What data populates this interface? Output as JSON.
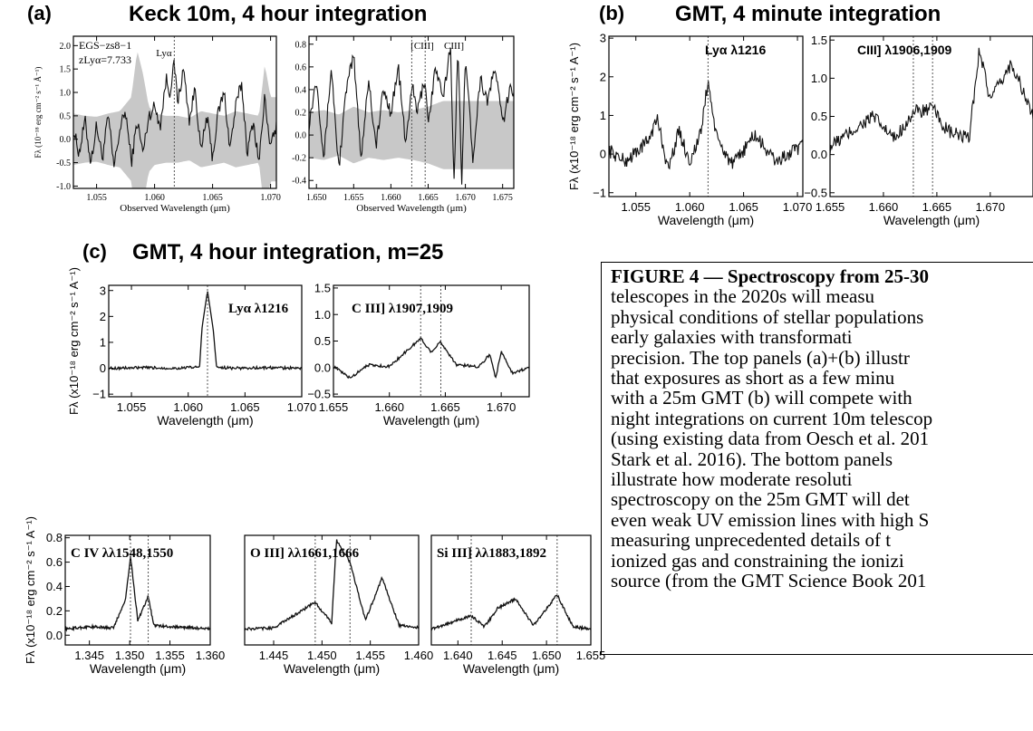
{
  "panel_headers": [
    {
      "label": "(a)",
      "title": "Keck 10m, 4 hour integration"
    },
    {
      "label": "(b)",
      "title": "GMT, 4 minute integration"
    },
    {
      "label": "(c)",
      "title": "GMT, 4 hour integration, m=25"
    }
  ],
  "caption": {
    "lines": [
      "FIGURE 4 — Spectroscopy from 25-30",
      "telescopes in the 2020s will measu",
      "physical conditions of stellar populations",
      "early galaxies with transformati",
      "precision. The top panels (a)+(b) illustr",
      "that exposures as short as a few minu",
      "with a 25m GMT (b) will compete with",
      "night integrations on current 10m telescop",
      "(using existing data from Oesch et al. 201",
      "Stark et al. 2016). The bottom panels",
      "illustrate how moderate resoluti",
      "spectroscopy on the 25m GMT will det",
      "even weak UV emission lines with high S",
      "measuring unprecedented details of t",
      "ionized gas and constraining the ionizi",
      "source (from the GMT Science Book 201"
    ]
  },
  "chart_data": [
    {
      "id": "a1",
      "type": "line",
      "panel": "(a)",
      "xlim": [
        1.053,
        1.0705
      ],
      "ylim": [
        -1.05,
        2.2
      ],
      "xticks": [
        "1.055",
        "1.060",
        "1.065",
        "1.070"
      ],
      "xtick_values": [
        1.055,
        1.06,
        1.065,
        1.07
      ],
      "yticks": [
        "-1.0",
        "-0.5",
        "0.0",
        "0.5",
        "1.0",
        "1.5",
        "2.0"
      ],
      "ytick_values": [
        -1,
        -0.5,
        0,
        0.5,
        1,
        1.5,
        2
      ],
      "xlabel": "Observed Wavelength (μm)",
      "ylabel": "Fλ (10⁻¹⁸ erg cm⁻² s⁻¹ Å⁻¹)",
      "annotations": [
        "EGS−zs8−1",
        "zLyα=7.733",
        "Lyα"
      ],
      "line_markers": [
        1.0617
      ],
      "series": [
        {
          "role": "noise",
          "x": [
            1.053,
            1.054,
            1.055,
            1.056,
            1.057,
            1.058,
            1.0585,
            1.059,
            1.0595,
            1.06,
            1.061,
            1.062,
            1.063,
            1.064,
            1.065,
            1.066,
            1.067,
            1.068,
            1.069,
            1.0695,
            1.07
          ],
          "values": [
            0.55,
            0.5,
            0.48,
            0.55,
            0.6,
            0.9,
            1.9,
            1.4,
            0.7,
            0.55,
            0.5,
            0.5,
            0.45,
            0.6,
            0.55,
            0.5,
            0.6,
            0.55,
            0.5,
            1.6,
            0.9
          ]
        },
        {
          "role": "spectrum",
          "x": [
            1.053,
            1.0535,
            1.054,
            1.0545,
            1.055,
            1.0555,
            1.056,
            1.0565,
            1.057,
            1.0575,
            1.058,
            1.0585,
            1.059,
            1.0595,
            1.06,
            1.0605,
            1.061,
            1.0613,
            1.0617,
            1.062,
            1.0625,
            1.063,
            1.0635,
            1.064,
            1.0645,
            1.065,
            1.0655,
            1.066,
            1.0665,
            1.067,
            1.0675,
            1.068,
            1.0685,
            1.069,
            1.0695,
            1.07,
            1.0705
          ],
          "values": [
            0.2,
            -0.3,
            0.4,
            -0.5,
            0.3,
            -0.4,
            0.5,
            -0.6,
            0.2,
            0.6,
            -0.5,
            0.4,
            -0.3,
            0.5,
            0.7,
            0.3,
            1.3,
            1.0,
            1.6,
            0.8,
            1.5,
            0.4,
            1.1,
            -0.3,
            0.5,
            -0.4,
            0.6,
            1.0,
            -0.2,
            0.7,
            1.2,
            -0.3,
            0.4,
            -0.5,
            0.9,
            -0.2,
            0.3
          ]
        }
      ]
    },
    {
      "id": "a2",
      "type": "line",
      "panel": "(a)",
      "xlim": [
        1.649,
        1.6765
      ],
      "ylim": [
        -0.47,
        0.87
      ],
      "xticks": [
        "1.650",
        "1.655",
        "1.660",
        "1.665",
        "1.670",
        "1.675"
      ],
      "xtick_values": [
        1.65,
        1.655,
        1.66,
        1.665,
        1.67,
        1.675
      ],
      "yticks": [
        "-0.4",
        "-0.2",
        "0.0",
        "0.2",
        "0.4",
        "0.6",
        "0.8"
      ],
      "ytick_values": [
        -0.4,
        -0.2,
        0,
        0.2,
        0.4,
        0.6,
        0.8
      ],
      "xlabel": "Observed Wavelength (μm)",
      "annotations": [
        "[CIII]",
        "CIII]"
      ],
      "line_markers": [
        1.6628,
        1.6646
      ],
      "series": [
        {
          "role": "noise",
          "x": [
            1.649,
            1.651,
            1.653,
            1.655,
            1.657,
            1.659,
            1.661,
            1.663,
            1.665,
            1.667,
            1.669,
            1.671,
            1.673,
            1.675,
            1.6765
          ],
          "values": [
            0.2,
            0.22,
            0.18,
            0.25,
            0.2,
            0.22,
            0.2,
            0.22,
            0.25,
            0.3,
            0.3,
            0.3,
            0.3,
            0.3,
            0.3
          ]
        },
        {
          "role": "spectrum",
          "x": [
            1.649,
            1.65,
            1.651,
            1.652,
            1.653,
            1.654,
            1.655,
            1.656,
            1.657,
            1.658,
            1.659,
            1.66,
            1.661,
            1.662,
            1.6628,
            1.6635,
            1.6646,
            1.665,
            1.666,
            1.667,
            1.668,
            1.6685,
            1.669,
            1.6695,
            1.67,
            1.671,
            1.672,
            1.673,
            1.674,
            1.675,
            1.676
          ],
          "values": [
            0.1,
            0.5,
            -0.2,
            0.6,
            -0.3,
            0.4,
            0.7,
            -0.2,
            0.5,
            -0.1,
            0.4,
            0.2,
            0.6,
            -0.1,
            0.45,
            0.2,
            0.5,
            0.1,
            0.6,
            0.3,
            0.8,
            -0.45,
            0.8,
            -0.4,
            0.7,
            -0.2,
            0.5,
            0.3,
            0.6,
            0.1,
            0.4
          ]
        }
      ]
    },
    {
      "id": "b1",
      "type": "line",
      "panel": "(b)",
      "xlim": [
        1.0525,
        1.0705
      ],
      "ylim": [
        -1.1,
        3.05
      ],
      "xticks": [
        "1.055",
        "1.060",
        "1.065",
        "1.070"
      ],
      "xtick_values": [
        1.055,
        1.06,
        1.065,
        1.07
      ],
      "yticks": [
        "−1",
        "0",
        "1",
        "2",
        "3"
      ],
      "ytick_values": [
        -1,
        0,
        1,
        2,
        3
      ],
      "xlabel": "Wavelength (μm)",
      "ylabel": "Fλ (x10⁻¹⁸ erg cm⁻² s⁻¹ A⁻¹)",
      "annotations": [
        "Lyα λ1216"
      ],
      "line_markers": [
        1.0617
      ],
      "series": [
        {
          "role": "spectrum",
          "x": [
            1.0525,
            1.054,
            1.056,
            1.057,
            1.058,
            1.059,
            1.06,
            1.061,
            1.0617,
            1.0625,
            1.064,
            1.066,
            1.068,
            1.0705
          ],
          "values": [
            0.1,
            -0.2,
            0.3,
            0.9,
            -0.4,
            0.6,
            -0.2,
            0.5,
            1.9,
            0.4,
            -0.3,
            0.5,
            -0.2,
            0.2
          ]
        }
      ]
    },
    {
      "id": "b2",
      "type": "line",
      "panel": "(b)",
      "xlim": [
        1.655,
        1.674
      ],
      "ylim": [
        -0.55,
        1.55
      ],
      "xticks": [
        "1.655",
        "1.660",
        "1.665",
        "1.670"
      ],
      "xtick_values": [
        1.655,
        1.66,
        1.665,
        1.67
      ],
      "yticks": [
        "−0.5",
        "0.0",
        "0.5",
        "1.0",
        "1.5"
      ],
      "ytick_values": [
        -0.5,
        0,
        0.5,
        1,
        1.5
      ],
      "xlabel": "Wavelength (μm)",
      "annotations": [
        "CIII] λ1906,1909"
      ],
      "line_markers": [
        1.6628,
        1.6646
      ],
      "series": [
        {
          "role": "spectrum",
          "x": [
            1.655,
            1.657,
            1.659,
            1.661,
            1.6628,
            1.6646,
            1.666,
            1.668,
            1.669,
            1.67,
            1.672,
            1.674
          ],
          "values": [
            0.1,
            0.3,
            0.5,
            0.2,
            0.55,
            0.6,
            0.3,
            0.2,
            1.4,
            0.7,
            1.2,
            0.5
          ]
        }
      ]
    },
    {
      "id": "c1",
      "type": "line",
      "panel": "(c)",
      "xlim": [
        1.053,
        1.07
      ],
      "ylim": [
        -1.1,
        3.2
      ],
      "xticks": [
        "1.055",
        "1.060",
        "1.065",
        "1.070"
      ],
      "xtick_values": [
        1.055,
        1.06,
        1.065,
        1.07
      ],
      "yticks": [
        "−1",
        "0",
        "1",
        "2",
        "3"
      ],
      "ytick_values": [
        -1,
        0,
        1,
        2,
        3
      ],
      "xlabel": "Wavelength (μm)",
      "ylabel": "Fλ (x10⁻¹⁸ erg cm⁻² s⁻¹ A⁻¹)",
      "annotations": [
        "Lyα λ1216"
      ],
      "line_markers": [
        1.0617
      ],
      "series": [
        {
          "role": "spectrum",
          "x": [
            1.053,
            1.056,
            1.059,
            1.061,
            1.0612,
            1.0617,
            1.0622,
            1.0625,
            1.064,
            1.067,
            1.07
          ],
          "values": [
            0.0,
            0.02,
            0.0,
            0.05,
            1.5,
            3.0,
            1.5,
            0.05,
            0.0,
            0.02,
            0.0
          ]
        }
      ]
    },
    {
      "id": "c2",
      "type": "line",
      "panel": "(c)",
      "xlim": [
        1.655,
        1.6725
      ],
      "ylim": [
        -0.55,
        1.55
      ],
      "xticks": [
        "1.655",
        "1.660",
        "1.665",
        "1.670"
      ],
      "xtick_values": [
        1.655,
        1.66,
        1.665,
        1.67
      ],
      "yticks": [
        "−0.5",
        "0.0",
        "0.5",
        "1.0",
        "1.5"
      ],
      "ytick_values": [
        -0.5,
        0,
        0.5,
        1,
        1.5
      ],
      "xlabel": "Wavelength (μm)",
      "annotations": [
        "C III] λ1907,1909"
      ],
      "line_markers": [
        1.6628,
        1.6646
      ],
      "series": [
        {
          "role": "spectrum",
          "x": [
            1.655,
            1.6565,
            1.658,
            1.66,
            1.6628,
            1.6637,
            1.6646,
            1.666,
            1.668,
            1.669,
            1.6695,
            1.67,
            1.671,
            1.6725
          ],
          "values": [
            0.02,
            -0.2,
            0.05,
            0.02,
            0.55,
            0.3,
            0.48,
            0.05,
            0.02,
            0.25,
            -0.2,
            0.3,
            -0.1,
            0.0
          ]
        }
      ]
    },
    {
      "id": "d1",
      "type": "line",
      "panel": "(c)",
      "xlim": [
        1.342,
        1.36
      ],
      "ylim": [
        -0.08,
        0.82
      ],
      "xticks": [
        "1.345",
        "1.350",
        "1.355",
        "1.360"
      ],
      "xtick_values": [
        1.345,
        1.35,
        1.355,
        1.36
      ],
      "yticks": [
        "0.0",
        "0.2",
        "0.4",
        "0.6",
        "0.8"
      ],
      "ytick_values": [
        0,
        0.2,
        0.4,
        0.6,
        0.8
      ],
      "xlabel": "Wavelength (μm)",
      "ylabel": "Fλ (x10⁻¹⁸ erg cm⁻² s⁻¹ A⁻¹)",
      "annotations": [
        "C IV λλ1548,1550"
      ],
      "line_markers": [
        1.3501,
        1.3523
      ],
      "series": [
        {
          "role": "spectrum",
          "x": [
            1.342,
            1.345,
            1.348,
            1.3495,
            1.3501,
            1.351,
            1.3523,
            1.353,
            1.355,
            1.358,
            1.36
          ],
          "values": [
            0.05,
            0.07,
            0.06,
            0.3,
            0.65,
            0.12,
            0.32,
            0.08,
            0.07,
            0.06,
            0.05
          ]
        }
      ]
    },
    {
      "id": "d2",
      "type": "line",
      "panel": "(c)",
      "xlim": [
        1.442,
        1.46
      ],
      "ylim": [
        -0.08,
        0.82
      ],
      "xticks": [
        "1.445",
        "1.450",
        "1.455",
        "1.460"
      ],
      "xtick_values": [
        1.445,
        1.45,
        1.455,
        1.46
      ],
      "yticks": [],
      "ytick_values": [],
      "xlabel": "Wavelength (μm)",
      "annotations": [
        "O III] λλ1661,1666"
      ],
      "line_markers": [
        1.4493,
        1.4529
      ],
      "series": [
        {
          "role": "spectrum",
          "x": [
            1.442,
            1.445,
            1.4493,
            1.451,
            1.4515,
            1.4529,
            1.4545,
            1.4562,
            1.458,
            1.46
          ],
          "values": [
            0.05,
            0.06,
            0.27,
            0.1,
            0.78,
            0.6,
            0.12,
            0.47,
            0.08,
            0.06
          ]
        }
      ]
    },
    {
      "id": "d3",
      "type": "line",
      "panel": "(c)",
      "xlim": [
        1.637,
        1.655
      ],
      "ylim": [
        -0.08,
        0.82
      ],
      "xticks": [
        "1.640",
        "1.645",
        "1.650",
        "1.655"
      ],
      "xtick_values": [
        1.64,
        1.645,
        1.65,
        1.655
      ],
      "yticks": [],
      "ytick_values": [],
      "xlabel": "Wavelength (μm)",
      "annotations": [
        "Si III] λλ1883,1892"
      ],
      "line_markers": [
        1.6415,
        1.6512
      ],
      "series": [
        {
          "role": "spectrum",
          "x": [
            1.637,
            1.6415,
            1.643,
            1.6445,
            1.6465,
            1.6485,
            1.6512,
            1.653,
            1.655
          ],
          "values": [
            0.05,
            0.16,
            0.07,
            0.22,
            0.3,
            0.08,
            0.33,
            0.07,
            0.05
          ]
        }
      ]
    }
  ]
}
